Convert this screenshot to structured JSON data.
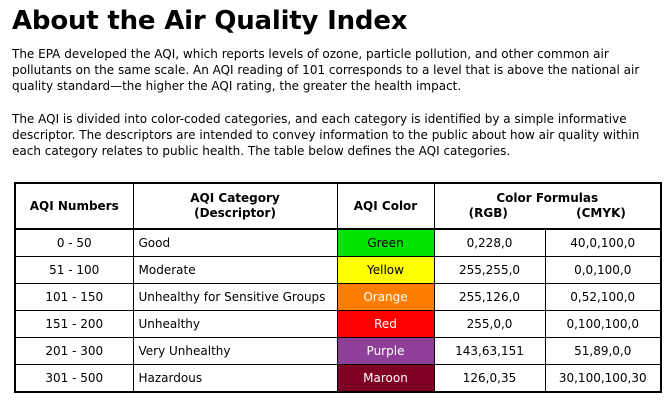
{
  "title": "About the Air Quality Index",
  "paragraph1": "The EPA developed the AQI, which reports levels of ozone, particle pollution, and other common air pollutants on the same scale.  An AQI reading of 101 corresponds to a level that is above the national air quality standard—the higher the AQI rating, the greater the health impact.",
  "paragraph2": "The AQI is divided into color-coded categories, and each category is identified by a simple informative descriptor. The descriptors are intended to convey information to the public about how air quality within each category relates to public health.  The table below defines the AQI categories.",
  "table": {
    "headers": {
      "numbers": "AQI Numbers",
      "category_line1": "AQI Category",
      "category_line2": "(Descriptor)",
      "color": "AQI Color",
      "formulas": "Color Formulas",
      "rgb": "(RGB)",
      "cmyk": "(CMYK)"
    },
    "rows": [
      {
        "range": "0 - 50",
        "category": "Good",
        "color_name": "Green",
        "rgb": "0,228,0",
        "cmyk": "40,0,100,0",
        "swatch": "#00e400",
        "text_color": "#000000"
      },
      {
        "range": "51 - 100",
        "category": "Moderate",
        "color_name": "Yellow",
        "rgb": "255,255,0",
        "cmyk": "0,0,100,0",
        "swatch": "#ffff00",
        "text_color": "#000000"
      },
      {
        "range": "101 - 150",
        "category": "Unhealthy for Sensitive Groups",
        "color_name": "Orange",
        "rgb": "255,126,0",
        "cmyk": "0,52,100,0",
        "swatch": "#ff7e00",
        "text_color": "#ffffff"
      },
      {
        "range": "151 - 200",
        "category": "Unhealthy",
        "color_name": "Red",
        "rgb": "255,0,0",
        "cmyk": "0,100,100,0",
        "swatch": "#ff0000",
        "text_color": "#ffffff"
      },
      {
        "range": "201 - 300",
        "category": "Very Unhealthy",
        "color_name": "Purple",
        "rgb": "143,63,151",
        "cmyk": "51,89,0,0",
        "swatch": "#8f3f97",
        "text_color": "#ffffff"
      },
      {
        "range": "301 - 500",
        "category": "Hazardous",
        "color_name": "Maroon",
        "rgb": "126,0,35",
        "cmyk": "30,100,100,30",
        "swatch": "#7e0023",
        "text_color": "#ffffff"
      }
    ]
  }
}
